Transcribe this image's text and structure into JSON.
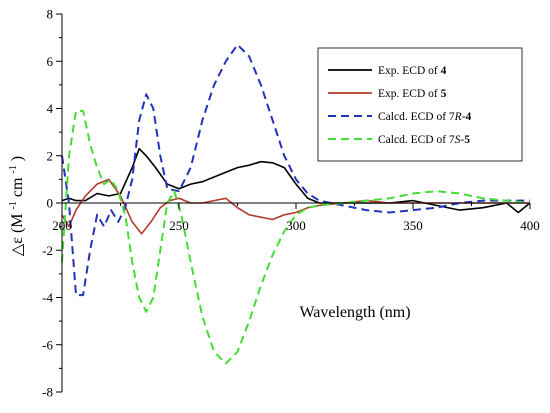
{
  "chart_data": {
    "type": "line",
    "xlabel": "Wavelength (nm)",
    "ylabel_symbol": "△ε",
    "ylabel_unit_open": "(M",
    "ylabel_unit_sup1": "-1",
    "ylabel_unit_mid": "cm",
    "ylabel_unit_sup2": "-1",
    "ylabel_unit_close": ")",
    "xlim": [
      200,
      400
    ],
    "ylim": [
      -8,
      8
    ],
    "x_ticks": [
      "200",
      "250",
      "300",
      "350",
      "400"
    ],
    "y_ticks": [
      "-8",
      "-6",
      "-4",
      "-2",
      "0",
      "2",
      "4",
      "6",
      "8"
    ],
    "grid": false,
    "legend_position": "top-right",
    "series": [
      {
        "name": "Exp. ECD of 4",
        "legend_parts": [
          {
            "t": "Exp. ECD of "
          },
          {
            "t": "4",
            "style": "bold"
          }
        ],
        "color": "#000000",
        "dash": "solid",
        "x": [
          200,
          203,
          206,
          210,
          215,
          220,
          225,
          230,
          233,
          236,
          240,
          245,
          250,
          255,
          260,
          265,
          270,
          275,
          280,
          285,
          290,
          295,
          300,
          305,
          310,
          320,
          330,
          340,
          350,
          360,
          370,
          380,
          390,
          395,
          400
        ],
        "y": [
          0.1,
          0.2,
          0.1,
          0.1,
          0.4,
          0.3,
          0.4,
          1.5,
          2.3,
          2.0,
          1.5,
          0.8,
          0.6,
          0.8,
          0.9,
          1.1,
          1.3,
          1.5,
          1.6,
          1.75,
          1.7,
          1.5,
          0.8,
          0.2,
          0.0,
          0.0,
          0.0,
          0.0,
          0.1,
          -0.1,
          -0.3,
          -0.2,
          0.0,
          -0.4,
          0.0
        ]
      },
      {
        "name": "Exp. ECD of 5",
        "legend_parts": [
          {
            "t": "Exp. ECD of "
          },
          {
            "t": "5",
            "style": "bold"
          }
        ],
        "color": "#b23a2a",
        "dash": "solid",
        "x": [
          200,
          203,
          206,
          210,
          215,
          220,
          225,
          230,
          234,
          238,
          242,
          246,
          250,
          255,
          260,
          265,
          270,
          275,
          280,
          285,
          290,
          295,
          300,
          305,
          310,
          320,
          330,
          340,
          350,
          360,
          370,
          380,
          390,
          400
        ],
        "y": [
          -0.5,
          -1.0,
          -0.3,
          0.3,
          0.8,
          1.0,
          0.3,
          -0.8,
          -1.3,
          -0.8,
          -0.2,
          0.1,
          0.2,
          0.0,
          0.0,
          0.1,
          0.2,
          -0.2,
          -0.5,
          -0.6,
          -0.7,
          -0.5,
          -0.4,
          -0.2,
          -0.1,
          0.0,
          0.1,
          0.0,
          0.0,
          0.0,
          0.0,
          0.0,
          0.0,
          0.0
        ]
      },
      {
        "name": "Calcd. ECD of 7R-4",
        "legend_parts": [
          {
            "t": "Calcd. ECD of 7"
          },
          {
            "t": "R",
            "style": "italic"
          },
          {
            "t": "-"
          },
          {
            "t": "4",
            "style": "bold"
          }
        ],
        "color": "#2233bb",
        "dash": "dashed",
        "x": [
          200,
          203,
          206,
          209,
          212,
          215,
          218,
          221,
          224,
          227,
          230,
          233,
          236,
          239,
          242,
          245,
          250,
          255,
          260,
          265,
          270,
          275,
          280,
          285,
          290,
          295,
          300,
          305,
          310,
          320,
          330,
          340,
          350,
          360,
          370,
          380,
          390,
          400
        ],
        "y": [
          2.0,
          0.0,
          -3.9,
          -3.9,
          -2.0,
          -0.5,
          -1.0,
          -0.3,
          -0.8,
          -0.2,
          1.0,
          3.5,
          4.6,
          4.0,
          2.0,
          0.6,
          0.5,
          1.5,
          3.5,
          5.0,
          6.0,
          6.7,
          6.2,
          5.0,
          3.5,
          2.0,
          1.0,
          0.4,
          0.1,
          -0.1,
          -0.3,
          -0.4,
          -0.3,
          -0.2,
          0.0,
          0.1,
          0.1,
          0.1
        ]
      },
      {
        "name": "Calcd. ECD of 7S-5",
        "legend_parts": [
          {
            "t": "Calcd. ECD of 7"
          },
          {
            "t": "S",
            "style": "italic"
          },
          {
            "t": "-"
          },
          {
            "t": "5",
            "style": "bold"
          }
        ],
        "color": "#44dd33",
        "dash": "dashed",
        "x": [
          200,
          203,
          206,
          209,
          212,
          215,
          218,
          221,
          224,
          227,
          230,
          233,
          236,
          239,
          242,
          245,
          248,
          251,
          255,
          260,
          265,
          270,
          275,
          280,
          285,
          290,
          295,
          300,
          305,
          310,
          320,
          330,
          340,
          350,
          360,
          370,
          380,
          390,
          400
        ],
        "y": [
          -2.5,
          2.0,
          3.9,
          3.9,
          2.5,
          1.5,
          0.8,
          1.0,
          0.5,
          -0.5,
          -2.5,
          -4.0,
          -4.6,
          -4.0,
          -2.0,
          0.0,
          0.5,
          -0.5,
          -2.5,
          -4.8,
          -6.3,
          -6.8,
          -6.3,
          -5.0,
          -3.5,
          -2.2,
          -1.2,
          -0.5,
          -0.2,
          -0.1,
          0.0,
          0.1,
          0.2,
          0.4,
          0.5,
          0.4,
          0.2,
          0.1,
          0.0
        ]
      }
    ]
  }
}
